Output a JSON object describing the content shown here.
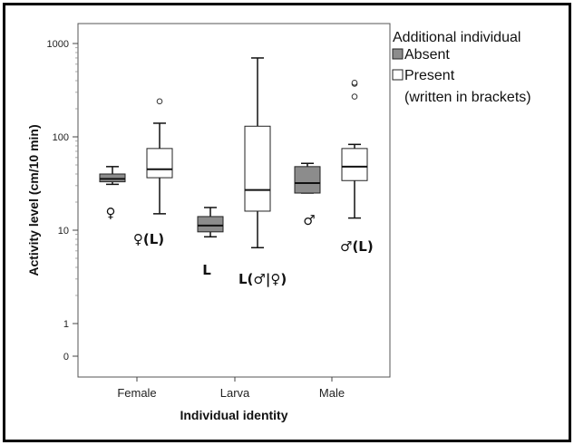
{
  "chart_data": {
    "type": "box",
    "y_scale": "log",
    "y_ticks": [
      0,
      1,
      10,
      100,
      1000
    ],
    "y_tick_labels": [
      "0",
      "1",
      "10",
      "100",
      "1000"
    ],
    "xlabel": "Individual identity",
    "ylabel": "Activity level (cm/10 min)",
    "categories": [
      "Female",
      "Larva",
      "Male"
    ],
    "legend": {
      "title": "Additional individual",
      "items": [
        {
          "label": "Absent",
          "color": "#8c8c8c"
        },
        {
          "label": "Present",
          "color": "#ffffff"
        }
      ],
      "note": "(written in brackets)",
      "position": "top-right"
    },
    "series": [
      {
        "name": "Absent",
        "color": "#8c8c8c",
        "boxes": [
          {
            "category": "Female",
            "min": 31,
            "q1": 33,
            "median": 35.5,
            "q3": 40,
            "max": 48,
            "outliers": []
          },
          {
            "category": "Larva",
            "min": 8.5,
            "q1": 9.6,
            "median": 11.2,
            "q3": 14,
            "max": 17.5,
            "outliers": []
          },
          {
            "category": "Male",
            "min": 25,
            "q1": 25,
            "median": 32,
            "q3": 48,
            "max": 52,
            "outliers": []
          }
        ]
      },
      {
        "name": "Present",
        "color": "#ffffff",
        "boxes": [
          {
            "category": "Female",
            "min": 15,
            "q1": 36.5,
            "median": 45,
            "q3": 75,
            "max": 140,
            "outliers": [
              240
            ]
          },
          {
            "category": "Larva",
            "min": 6.5,
            "q1": 16,
            "median": 27,
            "q3": 130,
            "max": 700,
            "outliers": []
          },
          {
            "category": "Male",
            "min": 13.5,
            "q1": 34,
            "median": 48,
            "q3": 75,
            "max": 83,
            "outliers": [
              270,
              370,
              380
            ]
          }
        ]
      }
    ],
    "annotations": [
      "♀",
      "♀(L)",
      "L",
      "L(♂|♀)",
      "♂",
      "♂(L)"
    ]
  }
}
